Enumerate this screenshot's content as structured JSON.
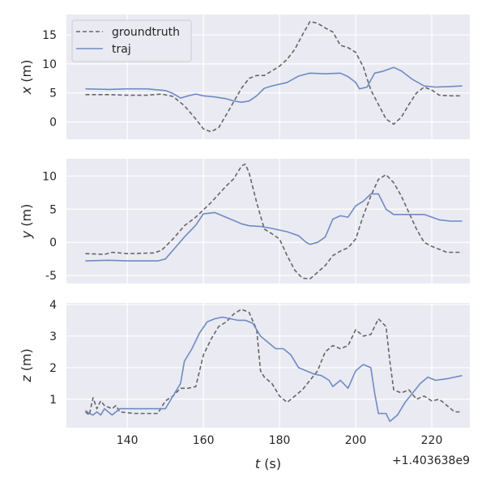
{
  "chart_data": [
    {
      "type": "line",
      "ylabel_var": "x",
      "ylabel_unit": " (m)",
      "ylim": [
        -3,
        18.5
      ],
      "yticks": [
        0,
        5,
        10,
        15
      ],
      "xticks": [
        140,
        160,
        180,
        200,
        220
      ],
      "legend": {
        "placement": "top-left"
      },
      "series": [
        {
          "name": "groundtruth",
          "style": "dashed",
          "color": "#666666",
          "points": [
            [
              129,
              4.7
            ],
            [
              135,
              4.7
            ],
            [
              140,
              4.6
            ],
            [
              145,
              4.6
            ],
            [
              149,
              4.8
            ],
            [
              152,
              4.4
            ],
            [
              155,
              2.8
            ],
            [
              158,
              0.5
            ],
            [
              160,
              -1.2
            ],
            [
              162,
              -1.7
            ],
            [
              164,
              -1
            ],
            [
              166,
              1.2
            ],
            [
              168,
              3.5
            ],
            [
              170,
              5.8
            ],
            [
              172,
              7.5
            ],
            [
              174,
              8
            ],
            [
              176,
              8
            ],
            [
              178,
              8.8
            ],
            [
              180,
              9.6
            ],
            [
              182,
              10.8
            ],
            [
              184,
              12.5
            ],
            [
              186,
              15
            ],
            [
              188,
              17.3
            ],
            [
              190,
              17
            ],
            [
              192,
              16.2
            ],
            [
              194,
              15.5
            ],
            [
              196,
              13.2
            ],
            [
              198,
              12.8
            ],
            [
              200,
              12
            ],
            [
              202,
              9.5
            ],
            [
              204,
              5.5
            ],
            [
              206,
              3
            ],
            [
              208,
              0.5
            ],
            [
              210,
              -0.4
            ],
            [
              212,
              0.8
            ],
            [
              214,
              3
            ],
            [
              216,
              5
            ],
            [
              218,
              6
            ],
            [
              220,
              5.5
            ],
            [
              222,
              4.6
            ],
            [
              225,
              4.5
            ],
            [
              228,
              4.5
            ]
          ]
        },
        {
          "name": "traj",
          "style": "solid",
          "color": "#6e8bc4",
          "points": [
            [
              129,
              5.7
            ],
            [
              135,
              5.6
            ],
            [
              140,
              5.7
            ],
            [
              145,
              5.7
            ],
            [
              150,
              5.4
            ],
            [
              152,
              4.9
            ],
            [
              154,
              4.1
            ],
            [
              156,
              4.5
            ],
            [
              158,
              4.8
            ],
            [
              160,
              4.5
            ],
            [
              163,
              4.3
            ],
            [
              166,
              4
            ],
            [
              168,
              3.6
            ],
            [
              170,
              3.4
            ],
            [
              172,
              3.6
            ],
            [
              174,
              4.5
            ],
            [
              176,
              5.8
            ],
            [
              178,
              6.2
            ],
            [
              182,
              6.8
            ],
            [
              185,
              7.9
            ],
            [
              188,
              8.4
            ],
            [
              192,
              8.3
            ],
            [
              196,
              8.4
            ],
            [
              198,
              7.8
            ],
            [
              200,
              6.8
            ],
            [
              201,
              5.7
            ],
            [
              203,
              6
            ],
            [
              205,
              8.4
            ],
            [
              207,
              8.7
            ],
            [
              210,
              9.4
            ],
            [
              212,
              8.8
            ],
            [
              215,
              7.3
            ],
            [
              218,
              6.2
            ],
            [
              221,
              6
            ],
            [
              225,
              6.1
            ],
            [
              228,
              6.2
            ]
          ]
        }
      ]
    },
    {
      "type": "line",
      "ylabel_var": "y",
      "ylabel_unit": " (m)",
      "ylim": [
        -6.2,
        12.6
      ],
      "yticks": [
        -5,
        0,
        5,
        10
      ],
      "xticks": [
        140,
        160,
        180,
        200,
        220
      ],
      "series": [
        {
          "name": "groundtruth",
          "style": "dashed",
          "color": "#666666",
          "points": [
            [
              129,
              -1.7
            ],
            [
              134,
              -1.8
            ],
            [
              136,
              -1.5
            ],
            [
              140,
              -1.7
            ],
            [
              147,
              -1.6
            ],
            [
              149,
              -1.2
            ],
            [
              152,
              0.5
            ],
            [
              155,
              2.5
            ],
            [
              158,
              3.8
            ],
            [
              162,
              6
            ],
            [
              166,
              8.5
            ],
            [
              168,
              9.6
            ],
            [
              170,
              11.5
            ],
            [
              171,
              11.8
            ],
            [
              172,
              10.5
            ],
            [
              174,
              6
            ],
            [
              176,
              2
            ],
            [
              178,
              1.3
            ],
            [
              180,
              0.5
            ],
            [
              182,
              -2
            ],
            [
              184,
              -4.2
            ],
            [
              186,
              -5.4
            ],
            [
              188,
              -5.5
            ],
            [
              190,
              -4.5
            ],
            [
              192,
              -3.5
            ],
            [
              194,
              -2
            ],
            [
              196,
              -1.3
            ],
            [
              198,
              -0.8
            ],
            [
              200,
              0.5
            ],
            [
              202,
              4
            ],
            [
              204,
              7
            ],
            [
              206,
              9.5
            ],
            [
              208,
              10.2
            ],
            [
              210,
              9
            ],
            [
              212,
              7
            ],
            [
              214,
              4.5
            ],
            [
              216,
              2
            ],
            [
              218,
              0
            ],
            [
              220,
              -0.6
            ],
            [
              224,
              -1.5
            ],
            [
              228,
              -1.5
            ]
          ]
        },
        {
          "name": "traj",
          "style": "solid",
          "color": "#6e8bc4",
          "points": [
            [
              129,
              -2.8
            ],
            [
              135,
              -2.7
            ],
            [
              140,
              -2.8
            ],
            [
              145,
              -2.8
            ],
            [
              148,
              -2.8
            ],
            [
              150,
              -2.5
            ],
            [
              152,
              -1.2
            ],
            [
              155,
              0.8
            ],
            [
              158,
              2.6
            ],
            [
              160,
              4.3
            ],
            [
              163,
              4.5
            ],
            [
              165,
              4
            ],
            [
              168,
              3.3
            ],
            [
              170,
              2.8
            ],
            [
              172,
              2.5
            ],
            [
              175,
              2.4
            ],
            [
              178,
              2.1
            ],
            [
              182,
              1.6
            ],
            [
              185,
              1
            ],
            [
              187,
              0
            ],
            [
              188,
              -0.3
            ],
            [
              190,
              0
            ],
            [
              192,
              0.8
            ],
            [
              194,
              3.5
            ],
            [
              196,
              4
            ],
            [
              198,
              3.8
            ],
            [
              200,
              5.5
            ],
            [
              202,
              6.2
            ],
            [
              204,
              7.3
            ],
            [
              206,
              7.3
            ],
            [
              208,
              5
            ],
            [
              210,
              4.2
            ],
            [
              214,
              4.2
            ],
            [
              218,
              4.2
            ],
            [
              222,
              3.4
            ],
            [
              225,
              3.2
            ],
            [
              228,
              3.2
            ]
          ]
        }
      ]
    },
    {
      "type": "line",
      "ylabel_var": "z",
      "ylabel_unit": " (m)",
      "ylim": [
        0.1,
        4.05
      ],
      "yticks": [
        1,
        2,
        3,
        4
      ],
      "xticks": [
        140,
        160,
        180,
        200,
        220
      ],
      "xlabel_var": "t",
      "xlabel_unit": " (s)",
      "offset_text": "+1.403638e9",
      "series": [
        {
          "name": "groundtruth",
          "style": "dashed",
          "color": "#666666",
          "points": [
            [
              129,
              0.6
            ],
            [
              130,
              0.5
            ],
            [
              131,
              1.05
            ],
            [
              132,
              0.7
            ],
            [
              133,
              0.95
            ],
            [
              134,
              0.8
            ],
            [
              136,
              0.7
            ],
            [
              137,
              0.8
            ],
            [
              138,
              0.6
            ],
            [
              142,
              0.55
            ],
            [
              148,
              0.55
            ],
            [
              150,
              0.95
            ],
            [
              152,
              1.1
            ],
            [
              154,
              1.35
            ],
            [
              156,
              1.35
            ],
            [
              158,
              1.4
            ],
            [
              160,
              2.4
            ],
            [
              162,
              2.9
            ],
            [
              164,
              3.3
            ],
            [
              166,
              3.45
            ],
            [
              168,
              3.7
            ],
            [
              170,
              3.85
            ],
            [
              172,
              3.75
            ],
            [
              174,
              3.2
            ],
            [
              175,
              1.9
            ],
            [
              176,
              1.7
            ],
            [
              178,
              1.5
            ],
            [
              180,
              1.1
            ],
            [
              182,
              0.9
            ],
            [
              184,
              1.1
            ],
            [
              186,
              1.3
            ],
            [
              188,
              1.6
            ],
            [
              190,
              1.9
            ],
            [
              192,
              2.5
            ],
            [
              194,
              2.7
            ],
            [
              196,
              2.6
            ],
            [
              198,
              2.7
            ],
            [
              200,
              3.2
            ],
            [
              202,
              3
            ],
            [
              204,
              3.05
            ],
            [
              206,
              3.55
            ],
            [
              208,
              3.3
            ],
            [
              209,
              2.2
            ],
            [
              210,
              1.3
            ],
            [
              212,
              1.2
            ],
            [
              214,
              1.3
            ],
            [
              216,
              1
            ],
            [
              218,
              1.1
            ],
            [
              220,
              0.95
            ],
            [
              222,
              1
            ],
            [
              224,
              0.8
            ],
            [
              226,
              0.6
            ],
            [
              228,
              0.6
            ]
          ]
        },
        {
          "name": "traj",
          "style": "solid",
          "color": "#6e8bc4",
          "points": [
            [
              129,
              0.65
            ],
            [
              130,
              0.55
            ],
            [
              131,
              0.5
            ],
            [
              132,
              0.6
            ],
            [
              133,
              0.5
            ],
            [
              134,
              0.7
            ],
            [
              136,
              0.5
            ],
            [
              137,
              0.6
            ],
            [
              138,
              0.7
            ],
            [
              142,
              0.7
            ],
            [
              148,
              0.7
            ],
            [
              150,
              0.7
            ],
            [
              152,
              1.1
            ],
            [
              154,
              1.5
            ],
            [
              155,
              2.2
            ],
            [
              157,
              2.6
            ],
            [
              159,
              3.1
            ],
            [
              161,
              3.45
            ],
            [
              163,
              3.55
            ],
            [
              165,
              3.6
            ],
            [
              167,
              3.55
            ],
            [
              169,
              3.5
            ],
            [
              171,
              3.5
            ],
            [
              173,
              3.4
            ],
            [
              175,
              3
            ],
            [
              177,
              2.8
            ],
            [
              179,
              2.6
            ],
            [
              181,
              2.6
            ],
            [
              183,
              2.4
            ],
            [
              185,
              2
            ],
            [
              187,
              1.9
            ],
            [
              189,
              1.8
            ],
            [
              191,
              1.75
            ],
            [
              193,
              1.6
            ],
            [
              194,
              1.4
            ],
            [
              196,
              1.6
            ],
            [
              198,
              1.35
            ],
            [
              200,
              1.9
            ],
            [
              202,
              2.1
            ],
            [
              204,
              2
            ],
            [
              205,
              1.2
            ],
            [
              206,
              0.55
            ],
            [
              208,
              0.55
            ],
            [
              209,
              0.3
            ],
            [
              211,
              0.5
            ],
            [
              213,
              0.9
            ],
            [
              215,
              1.2
            ],
            [
              217,
              1.5
            ],
            [
              219,
              1.7
            ],
            [
              221,
              1.6
            ],
            [
              224,
              1.65
            ],
            [
              226,
              1.7
            ],
            [
              228,
              1.75
            ]
          ]
        }
      ]
    }
  ]
}
